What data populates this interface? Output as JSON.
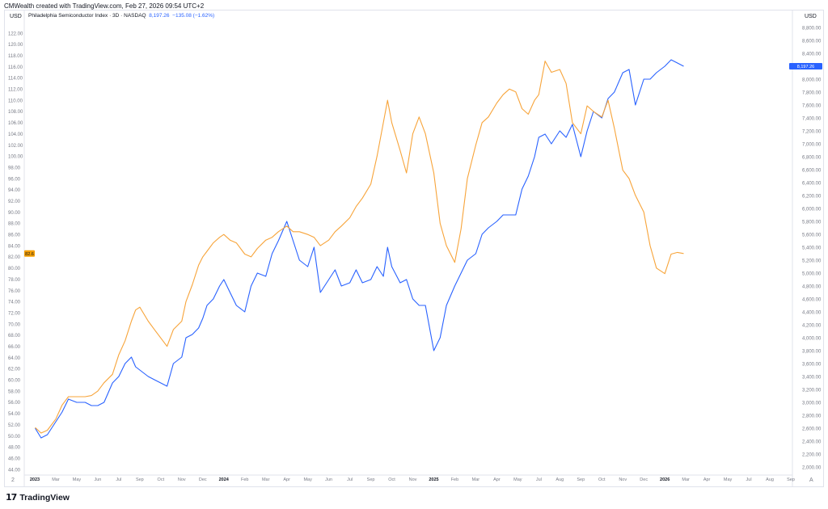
{
  "header": "CMWealth created with TradingView.com, Feb 27, 2026 09:54 UTC+2",
  "left_currency": "USD",
  "right_currency": "USD",
  "legend": {
    "name": "Philadelphia Semiconductor Index · 3D · NASDAQ",
    "price": "8,197.26",
    "change": "−135.08 (−1.62%)"
  },
  "corner_left": "2",
  "corner_right": "A",
  "brand": {
    "logo": "17",
    "text": "TradingView"
  },
  "colors": {
    "blue": "#2962ff",
    "orange": "#f7a43a",
    "grid": "#f0f3fa",
    "text": "#787b86"
  },
  "chart_data": {
    "type": "line",
    "x_tick_labels": [
      "2023",
      "Mar",
      "May",
      "Jun",
      "Jul",
      "Sep",
      "Oct",
      "Nov",
      "Dec",
      "2024",
      "Feb",
      "Mar",
      "Apr",
      "May",
      "Jun",
      "Jul",
      "Sep",
      "Oct",
      "Nov",
      "2025",
      "Feb",
      "Mar",
      "Apr",
      "May",
      "Jul",
      "Aug",
      "Sep",
      "Oct",
      "Nov",
      "Dec",
      "2026",
      "Mar",
      "Apr",
      "May",
      "Jul",
      "Aug",
      "Sep"
    ],
    "left_axis": {
      "min": 44,
      "max": 122,
      "step": 2
    },
    "right_axis": {
      "min": 2000,
      "max": 8800,
      "step": 200
    },
    "last_value_labels": {
      "left": "82.6",
      "right": "8,197.26"
    },
    "series": [
      {
        "name": "Philadelphia Semiconductor Index",
        "axis": "right",
        "color": "#2962ff",
        "x": [
          0.02,
          0.3,
          0.6,
          1.0,
          1.3,
          1.6,
          2.0,
          2.4,
          2.7,
          3.0,
          3.3,
          3.7,
          4.0,
          4.3,
          4.6,
          4.8,
          5.0,
          5.4,
          5.7,
          6.0,
          6.3,
          6.6,
          7.0,
          7.2,
          7.5,
          7.8,
          8.0,
          8.2,
          8.5,
          8.8,
          9.0,
          9.3,
          9.6,
          10.0,
          10.3,
          10.6,
          11.0,
          11.3,
          11.6,
          12.0,
          12.3,
          12.6,
          13.0,
          13.3,
          13.6,
          14.0,
          14.3,
          14.6,
          15.0,
          15.3,
          15.6,
          16.0,
          16.3,
          16.6,
          16.8,
          17.0,
          17.4,
          17.7,
          18.0,
          18.3,
          18.6,
          19.0,
          19.3,
          19.6,
          20.0,
          20.3,
          20.6,
          21.0,
          21.3,
          21.6,
          22.0,
          22.3,
          22.6,
          22.9,
          23.2,
          23.5,
          23.8,
          24.0,
          24.3,
          24.6,
          25.0,
          25.3,
          25.6,
          26.0,
          26.3,
          26.6,
          27.0,
          27.3,
          27.6,
          28.0,
          28.3,
          28.6,
          29.0,
          29.3,
          29.6,
          30.0,
          30.3,
          30.6,
          30.9
        ],
        "y": [
          2600,
          2450,
          2500,
          2700,
          2850,
          3050,
          3000,
          3000,
          2950,
          2950,
          3000,
          3300,
          3400,
          3600,
          3700,
          3550,
          3500,
          3400,
          3350,
          3300,
          3250,
          3600,
          3700,
          4000,
          4050,
          4150,
          4300,
          4500,
          4600,
          4800,
          4900,
          4700,
          4500,
          4400,
          4800,
          5000,
          4950,
          5300,
          5500,
          5800,
          5500,
          5200,
          5100,
          5400,
          4700,
          4900,
          5050,
          4800,
          4850,
          5050,
          4850,
          4900,
          5100,
          4950,
          5400,
          5100,
          4850,
          4900,
          4600,
          4500,
          4500,
          3800,
          4000,
          4500,
          4800,
          5000,
          5200,
          5300,
          5600,
          5700,
          5800,
          5900,
          5900,
          5900,
          6300,
          6500,
          6800,
          7100,
          7150,
          7000,
          7200,
          7100,
          7300,
          6800,
          7200,
          7500,
          7400,
          7700,
          7800,
          8100,
          8150,
          7600,
          8000,
          8000,
          8100,
          8200,
          8300,
          8250,
          8200
        ]
      },
      {
        "name": "",
        "axis": "left",
        "color": "#f7a43a",
        "x": [
          0.02,
          0.3,
          0.6,
          1.0,
          1.3,
          1.6,
          2.0,
          2.4,
          2.7,
          3.0,
          3.3,
          3.7,
          4.0,
          4.3,
          4.6,
          4.8,
          5.0,
          5.4,
          5.7,
          6.0,
          6.3,
          6.6,
          7.0,
          7.2,
          7.5,
          7.8,
          8.0,
          8.2,
          8.5,
          8.8,
          9.0,
          9.3,
          9.6,
          10.0,
          10.3,
          10.6,
          11.0,
          11.3,
          11.6,
          12.0,
          12.3,
          12.6,
          13.0,
          13.3,
          13.6,
          14.0,
          14.3,
          14.6,
          15.0,
          15.3,
          15.6,
          16.0,
          16.3,
          16.6,
          16.8,
          17.0,
          17.4,
          17.7,
          18.0,
          18.3,
          18.6,
          19.0,
          19.3,
          19.6,
          20.0,
          20.3,
          20.6,
          21.0,
          21.3,
          21.6,
          22.0,
          22.3,
          22.6,
          22.9,
          23.2,
          23.5,
          23.8,
          24.0,
          24.3,
          24.6,
          25.0,
          25.3,
          25.6,
          26.0,
          26.3,
          26.6,
          27.0,
          27.3,
          27.6,
          28.0,
          28.3,
          28.6,
          29.0,
          29.3,
          29.6,
          30.0,
          30.3,
          30.6,
          30.9
        ],
        "y": [
          51.5,
          50.5,
          51.0,
          53.0,
          55.5,
          57.0,
          57.0,
          57.0,
          57.2,
          58.0,
          59.5,
          61.0,
          64.5,
          67.0,
          70.5,
          72.5,
          73.0,
          70.5,
          69.0,
          67.5,
          66.0,
          69.0,
          70.5,
          74.0,
          77.0,
          80.5,
          82.0,
          83.0,
          84.5,
          85.5,
          86.0,
          85.0,
          84.5,
          82.5,
          82.0,
          83.5,
          85.0,
          85.5,
          86.5,
          87.5,
          86.5,
          86.5,
          86.0,
          85.5,
          84.0,
          85.0,
          86.5,
          87.5,
          89.0,
          91.0,
          92.5,
          95.0,
          100.0,
          106.0,
          110.0,
          106.0,
          101.0,
          97.0,
          104.0,
          107.0,
          104.0,
          97.0,
          88.0,
          84.0,
          81.0,
          87.0,
          96.0,
          102.0,
          106.0,
          107.0,
          109.5,
          111.0,
          112.0,
          111.5,
          108.5,
          107.5,
          110.0,
          111.0,
          117.0,
          115.0,
          115.5,
          113.0,
          106.0,
          104.0,
          109.0,
          108.0,
          107.0,
          110.0,
          105.0,
          97.5,
          96.0,
          93.0,
          90.0,
          84.0,
          80.0,
          79.0,
          82.5,
          82.8,
          82.6
        ]
      }
    ]
  }
}
